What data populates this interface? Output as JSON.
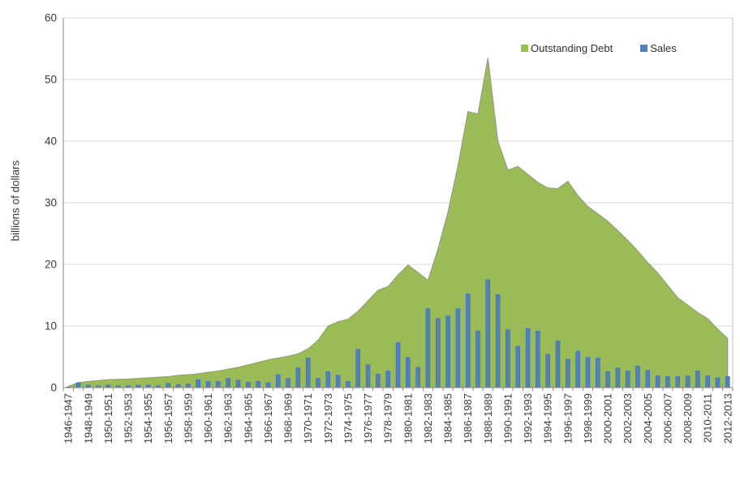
{
  "chart_data": {
    "type": "combo",
    "title": "",
    "ylabel": "billions of dollars",
    "ylim": [
      0,
      60
    ],
    "yticks": [
      0,
      10,
      20,
      30,
      40,
      50,
      60
    ],
    "grid": true,
    "legend_position": "top-right-inside",
    "xtick_label_every": 2,
    "categories": [
      "1946-1947",
      "1947-1948",
      "1948-1949",
      "1949-1950",
      "1950-1951",
      "1951-1952",
      "1952-1953",
      "1953-1954",
      "1954-1955",
      "1955-1956",
      "1956-1957",
      "1957-1958",
      "1958-1959",
      "1959-1960",
      "1960-1961",
      "1961-1962",
      "1962-1963",
      "1963-1964",
      "1964-1965",
      "1965-1966",
      "1966-1967",
      "1967-1968",
      "1968-1969",
      "1969-1970",
      "1970-1971",
      "1971-1972",
      "1972-1973",
      "1973-1974",
      "1974-1975",
      "1975-1976",
      "1976-1977",
      "1977-1978",
      "1978-1979",
      "1979-1980",
      "1980-1981",
      "1981-1982",
      "1982-1983",
      "1983-1984",
      "1984-1985",
      "1985-1986",
      "1986-1987",
      "1987-1988",
      "1988-1989",
      "1989-1990",
      "1990-1991",
      "1991-1992",
      "1992-1993",
      "1993-1994",
      "1994-1995",
      "1995-1996",
      "1996-1997",
      "1997-1998",
      "1998-1999",
      "1999-2000",
      "2000-2001",
      "2001-2002",
      "2002-2003",
      "2003-2004",
      "2004-2005",
      "2005-2006",
      "2006-2007",
      "2007-2008",
      "2008-2009",
      "2009-2010",
      "2010-2011",
      "2011-2012",
      "2012-2013"
    ],
    "series": [
      {
        "name": "Outstanding Debt",
        "type": "area",
        "color": "#9BBB59",
        "border_color": "#929292",
        "values": [
          0.2,
          0.8,
          1.0,
          1.15,
          1.3,
          1.35,
          1.4,
          1.5,
          1.6,
          1.7,
          1.8,
          2.0,
          2.1,
          2.25,
          2.5,
          2.7,
          3.0,
          3.3,
          3.7,
          4.1,
          4.5,
          4.8,
          5.1,
          5.5,
          6.3,
          7.7,
          10.0,
          10.7,
          11.1,
          12.4,
          14.1,
          15.8,
          16.4,
          18.3,
          19.9,
          18.7,
          17.4,
          22.5,
          28.5,
          36.0,
          44.8,
          44.4,
          53.5,
          40.0,
          35.3,
          35.9,
          34.6,
          33.3,
          32.4,
          32.3,
          33.5,
          31.2,
          29.4,
          28.2,
          27.0,
          25.5,
          23.9,
          22.2,
          20.3,
          18.6,
          16.6,
          14.6,
          13.4,
          12.2,
          11.2,
          9.5,
          8.0
        ]
      },
      {
        "name": "Sales",
        "type": "bar",
        "color": "#4F81BD",
        "border_color": "#3E689A",
        "values": [
          0.1,
          0.8,
          0.4,
          0.3,
          0.4,
          0.3,
          0.3,
          0.4,
          0.4,
          0.3,
          0.7,
          0.5,
          0.6,
          1.3,
          1.0,
          1.0,
          1.5,
          1.2,
          0.9,
          1.0,
          0.8,
          2.1,
          1.5,
          3.2,
          4.8,
          1.5,
          2.6,
          2.0,
          1.0,
          6.2,
          3.7,
          2.2,
          2.7,
          7.3,
          4.9,
          3.3,
          12.8,
          11.2,
          11.6,
          12.8,
          15.2,
          9.2,
          17.5,
          15.1,
          9.4,
          6.7,
          9.6,
          9.2,
          5.4,
          7.6,
          4.6,
          5.9,
          4.9,
          4.8,
          2.6,
          3.2,
          2.7,
          3.5,
          2.8,
          1.9,
          1.8,
          1.8,
          1.9,
          2.7,
          1.9,
          1.6,
          1.8
        ]
      }
    ]
  },
  "colors": {
    "background": "#FFFFFF",
    "gridline": "#D9D9D9",
    "axis": "#898989",
    "right_border": "#BFBFBF",
    "tick_text": "#3a3a3a"
  }
}
